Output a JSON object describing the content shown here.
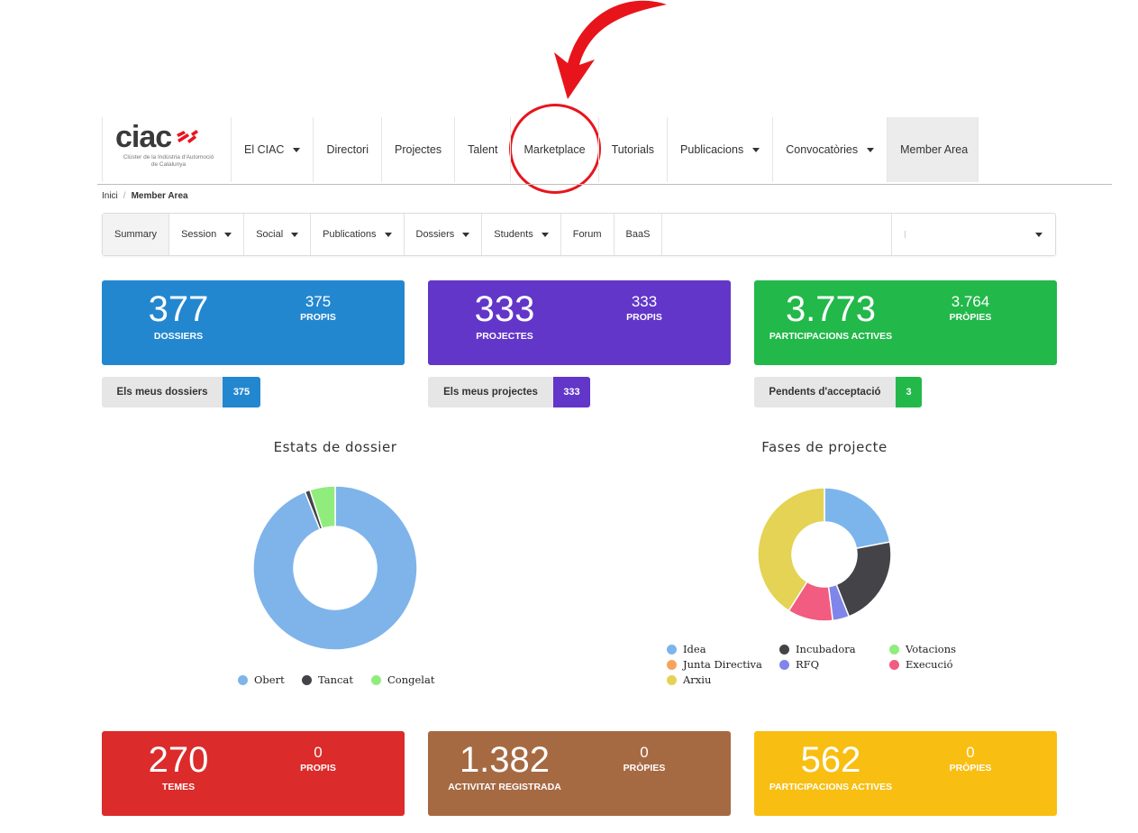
{
  "logo": {
    "wordmark": "ciac",
    "subtitle_line1": "Clúster de la Indústria d'Automoció",
    "subtitle_line2": "de Catalunya"
  },
  "nav": {
    "items": [
      {
        "label": "El CIAC",
        "dropdown": true
      },
      {
        "label": "Directori",
        "dropdown": false
      },
      {
        "label": "Projectes",
        "dropdown": false
      },
      {
        "label": "Talent",
        "dropdown": false
      },
      {
        "label": "Marketplace",
        "dropdown": false
      },
      {
        "label": "Tutorials",
        "dropdown": false
      },
      {
        "label": "Publicacions",
        "dropdown": true
      },
      {
        "label": "Convocatòries",
        "dropdown": true
      },
      {
        "label": "Member Area",
        "dropdown": false,
        "active": true
      }
    ]
  },
  "breadcrumb": {
    "home": "Inici",
    "separator": "/",
    "current": "Member Area"
  },
  "subnav": {
    "tabs": [
      {
        "label": "Summary",
        "dropdown": false,
        "active": true
      },
      {
        "label": "Session",
        "dropdown": true
      },
      {
        "label": "Social",
        "dropdown": true
      },
      {
        "label": "Publications",
        "dropdown": true
      },
      {
        "label": "Dossiers",
        "dropdown": true
      },
      {
        "label": "Students",
        "dropdown": true
      },
      {
        "label": "Forum",
        "dropdown": false
      },
      {
        "label": "BaaS",
        "dropdown": false
      }
    ],
    "select_value": ""
  },
  "cards_top": [
    {
      "value": "377",
      "label": "DOSSIERS",
      "sub_value": "375",
      "sub_label": "PROPIS",
      "color": "#2387d0"
    },
    {
      "value": "333",
      "label": "PROJECTES",
      "sub_value": "333",
      "sub_label": "PROPIS",
      "color": "#6236c8"
    },
    {
      "value": "3.773",
      "label": "PARTICIPACIONS ACTIVES",
      "sub_value": "3.764",
      "sub_label": "PRÒPIES",
      "color": "#22b84a"
    }
  ],
  "pills": [
    {
      "label": "Els meus dossiers",
      "count": "375",
      "color": "#2387d0"
    },
    {
      "label": "Els meus projectes",
      "count": "333",
      "color": "#6236c8"
    },
    {
      "label": "Pendents d'acceptació",
      "count": "3",
      "color": "#22b84a"
    }
  ],
  "chart_data": [
    {
      "type": "pie",
      "title": "Estats de dossier",
      "categories": [
        "Obert",
        "Tancat",
        "Congelat"
      ],
      "values": [
        94,
        1,
        5
      ],
      "colors": [
        "#7eb4ea",
        "#434348",
        "#90ed7d"
      ],
      "legend": "bottom"
    },
    {
      "type": "pie",
      "title": "Fases de projecte",
      "categories": [
        "Idea",
        "Incubadora",
        "Votacions",
        "Junta Directiva",
        "RFQ",
        "Execució",
        "Arxiu"
      ],
      "values": [
        22,
        22,
        0,
        0,
        4,
        11,
        41
      ],
      "colors": [
        "#7cb5ec",
        "#434348",
        "#90ed7d",
        "#f7a35c",
        "#8085e9",
        "#f15c80",
        "#e4d354"
      ],
      "legend": "bottom"
    }
  ],
  "cards_bottom": [
    {
      "value": "270",
      "label": "TEMES",
      "sub_value": "0",
      "sub_label": "PROPIS",
      "color": "#dc2b2b"
    },
    {
      "value": "1.382",
      "label": "ACTIVITAT REGISTRADA",
      "sub_value": "0",
      "sub_label": "PRÒPIES",
      "color": "#a66a43"
    },
    {
      "value": "562",
      "label": "PARTICIPACIONS ACTIVES",
      "sub_value": "0",
      "sub_label": "PRÒPIES",
      "color": "#f8be12"
    }
  ]
}
